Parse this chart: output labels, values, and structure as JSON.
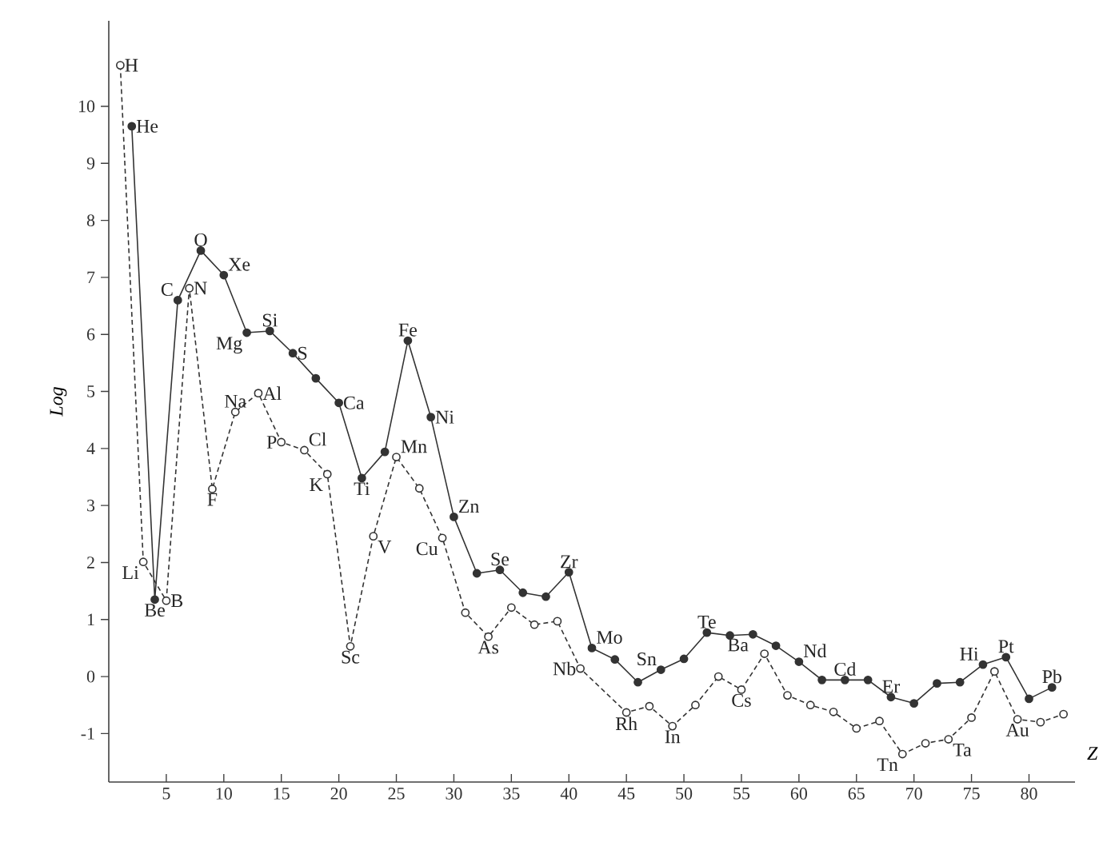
{
  "chart_data": {
    "type": "line",
    "xlabel": "Z",
    "ylabel": "Log",
    "xlim": [
      0,
      84
    ],
    "xticks": [
      5,
      10,
      15,
      20,
      25,
      30,
      35,
      40,
      45,
      50,
      55,
      60,
      65,
      70,
      75,
      80
    ],
    "ylim": [
      -1.85,
      11.5
    ],
    "yticks": [
      -1,
      0,
      1,
      2,
      3,
      4,
      5,
      6,
      7,
      8,
      9,
      10
    ],
    "marker": "circle",
    "series": [
      {
        "color": "#333333",
        "line_style": "solid",
        "x": [
          2,
          4,
          6,
          8,
          10,
          12,
          14,
          16,
          18,
          20,
          22,
          24,
          26,
          28,
          30,
          32,
          34,
          36,
          38,
          40,
          42,
          44,
          46,
          48,
          50,
          52,
          54,
          56,
          58,
          60,
          62,
          64,
          66,
          68,
          70,
          72,
          74,
          76,
          78,
          80,
          82
        ],
        "values": [
          9.65,
          1.35,
          6.6,
          7.47,
          7.04,
          6.03,
          6.06,
          5.67,
          5.23,
          4.8,
          3.48,
          3.94,
          5.89,
          4.55,
          2.8,
          1.81,
          1.87,
          1.47,
          1.4,
          1.83,
          0.5,
          0.3,
          -0.1,
          0.12,
          0.31,
          0.77,
          0.72,
          0.74,
          0.54,
          0.26,
          -0.06,
          -0.06,
          -0.06,
          -0.36,
          -0.47,
          -0.12,
          -0.1,
          0.21,
          0.34,
          -0.39,
          -0.19
        ]
      },
      {
        "color": "#333333",
        "line_style": "dashed",
        "x": [
          1,
          3,
          5,
          7,
          9,
          11,
          13,
          15,
          17,
          19,
          21,
          23,
          25,
          27,
          29,
          31,
          33,
          35,
          37,
          39,
          41,
          45,
          47,
          49,
          51,
          53,
          55,
          57,
          59,
          61,
          63,
          65,
          67,
          69,
          71,
          73,
          75,
          77,
          79,
          81,
          83
        ],
        "values": [
          10.72,
          2.01,
          1.33,
          6.81,
          3.29,
          4.64,
          4.97,
          4.11,
          3.97,
          3.55,
          0.53,
          2.46,
          3.85,
          3.3,
          2.43,
          1.12,
          0.7,
          1.21,
          0.91,
          0.97,
          0.14,
          -0.63,
          -0.52,
          -0.87,
          -0.5,
          0.0,
          -0.23,
          0.4,
          -0.33,
          -0.5,
          -0.62,
          -0.91,
          -0.78,
          -1.36,
          -1.17,
          -1.1,
          -0.72,
          0.09,
          -0.75,
          -0.8,
          -0.66
        ]
      }
    ],
    "annotations": [
      {
        "text": "H",
        "x": 1,
        "y": 10.72
      },
      {
        "text": "He",
        "x": 2,
        "y": 9.65
      },
      {
        "text": "Li",
        "x": 3,
        "y": 2.01
      },
      {
        "text": "Be",
        "x": 4,
        "y": 1.35
      },
      {
        "text": "B",
        "x": 5,
        "y": 1.33
      },
      {
        "text": "C",
        "x": 6,
        "y": 6.6
      },
      {
        "text": "N",
        "x": 7,
        "y": 6.81
      },
      {
        "text": "O",
        "x": 8,
        "y": 7.47
      },
      {
        "text": "F",
        "x": 9,
        "y": 3.29
      },
      {
        "text": "Xe",
        "x": 10,
        "y": 7.04
      },
      {
        "text": "Na",
        "x": 11,
        "y": 4.64
      },
      {
        "text": "Mg",
        "x": 12,
        "y": 6.03
      },
      {
        "text": "Al",
        "x": 13,
        "y": 4.97
      },
      {
        "text": "Si",
        "x": 14,
        "y": 6.06
      },
      {
        "text": "P",
        "x": 15,
        "y": 4.11
      },
      {
        "text": "S",
        "x": 16,
        "y": 5.67
      },
      {
        "text": "Cl",
        "x": 17,
        "y": 3.97
      },
      {
        "text": "K",
        "x": 19,
        "y": 3.55
      },
      {
        "text": "Ca",
        "x": 20,
        "y": 4.8
      },
      {
        "text": "Sc",
        "x": 21,
        "y": 0.53
      },
      {
        "text": "Ti",
        "x": 22,
        "y": 3.48
      },
      {
        "text": "V",
        "x": 23,
        "y": 2.46
      },
      {
        "text": "Mn",
        "x": 25,
        "y": 3.85
      },
      {
        "text": "Fe",
        "x": 26,
        "y": 5.89
      },
      {
        "text": "Ni",
        "x": 28,
        "y": 4.55
      },
      {
        "text": "Cu",
        "x": 29,
        "y": 2.43
      },
      {
        "text": "Zn",
        "x": 30,
        "y": 2.8
      },
      {
        "text": "As",
        "x": 33,
        "y": 0.7
      },
      {
        "text": "Se",
        "x": 34,
        "y": 1.87
      },
      {
        "text": "Zr",
        "x": 40,
        "y": 1.83
      },
      {
        "text": "Nb",
        "x": 41,
        "y": 0.14
      },
      {
        "text": "Mo",
        "x": 42,
        "y": 0.5
      },
      {
        "text": "Rh",
        "x": 45,
        "y": -0.63
      },
      {
        "text": "Sn",
        "x": 48,
        "y": 0.12
      },
      {
        "text": "In",
        "x": 49,
        "y": -0.87
      },
      {
        "text": "Te",
        "x": 52,
        "y": 0.77
      },
      {
        "text": "Cs",
        "x": 55,
        "y": -0.23
      },
      {
        "text": "Ba",
        "x": 56,
        "y": 0.74
      },
      {
        "text": "Nd",
        "x": 60,
        "y": 0.26
      },
      {
        "text": "Cd",
        "x": 64,
        "y": -0.06
      },
      {
        "text": "Er",
        "x": 68,
        "y": -0.36
      },
      {
        "text": "Tn",
        "x": 69,
        "y": -1.36
      },
      {
        "text": "Ta",
        "x": 73,
        "y": -1.1
      },
      {
        "text": "Hi",
        "x": 76,
        "y": 0.21
      },
      {
        "text": "Pt",
        "x": 78,
        "y": 0.34
      },
      {
        "text": "Au",
        "x": 79,
        "y": -0.75
      },
      {
        "text": "Pb",
        "x": 82,
        "y": -0.19
      }
    ]
  }
}
